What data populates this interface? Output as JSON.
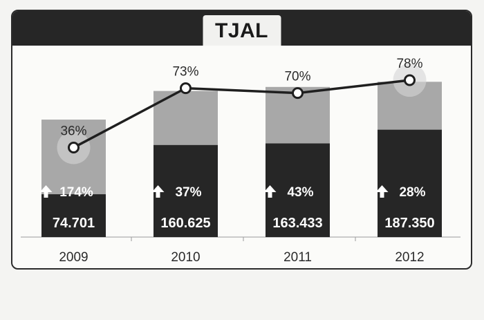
{
  "title": "TJAL",
  "chart_data": {
    "type": "bar",
    "title": "TJAL",
    "categories": [
      "2009",
      "2010",
      "2011",
      "2012"
    ],
    "series": [
      {
        "values": [
          74701,
          160625,
          163433,
          187350
        ]
      },
      {
        "values": [
          36,
          73,
          70,
          78
        ]
      }
    ],
    "value_labels": [
      "74.701",
      "160.625",
      "163.433",
      "187.350"
    ],
    "growth_labels": [
      "174%",
      "37%",
      "43%",
      "28%"
    ],
    "percent_labels": [
      "36%",
      "73%",
      "70%",
      "78%"
    ],
    "bar_total_estimates": [
      205000,
      255000,
      262000,
      271000
    ],
    "ylim": [
      0,
      300000
    ],
    "line_ylim": [
      0,
      100
    ],
    "colors": {
      "dark_bar": "#262626",
      "light_bar": "#a8a8a8",
      "line": "#1f1f1f",
      "header": "#262626"
    }
  }
}
